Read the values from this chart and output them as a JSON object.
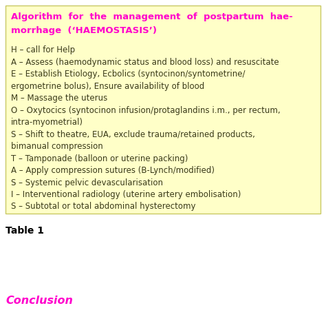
{
  "bg_color": "#ffffc8",
  "page_bg": "#ffffff",
  "title_color": "#ff00cc",
  "title_lines": [
    "Algorithm  for  the  management  of  postpartum  hae-",
    "morrhage  (‘HAEMOSTASIS’)"
  ],
  "body_color": "#3a3a1a",
  "body_lines": [
    "H – call for Help",
    "A – Assess (haemodynamic status and blood loss) and resuscitate",
    "E – Establish Etiology, Ecbolics (syntocinon/syntometrine/",
    "ergometrine bolus), Ensure availability of blood",
    "M – Massage the uterus",
    "O – Oxytocics (syntocinon infusion/protaglandins i.m., per rectum,",
    "intra-myometrial)",
    "S – Shift to theatre, EUA, exclude trauma/retained products,",
    "bimanual compression",
    "T – Tamponade (balloon or uterine packing)",
    "A – Apply compression sutures (B-Lynch/modified)",
    "S – Systemic pelvic devascularisation",
    "I – Interventional radiology (uterine artery embolisation)",
    "S – Subtotal or total abdominal hysterectomy"
  ],
  "table_label": "Table 1",
  "table_label_color": "#000000",
  "conclusion_color": "#ff00cc",
  "conclusion_text": "Conclusion",
  "box_border_color": "#c8c864",
  "title_fontsize": 9.5,
  "body_fontsize": 8.5,
  "table_label_fontsize": 10.0,
  "conclusion_fontsize": 11.5,
  "figwidth": 4.74,
  "figheight": 4.79,
  "dpi": 100
}
